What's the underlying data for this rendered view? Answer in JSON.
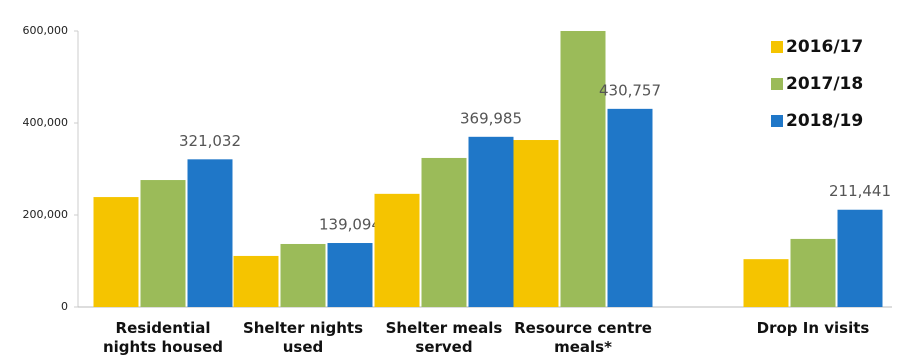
{
  "chart_data": {
    "type": "bar",
    "categories": [
      "Residential nights housed",
      "Shelter nights used",
      "Shelter meals served",
      "Resource centre meals*",
      "Drop In visits"
    ],
    "series": [
      {
        "name": "2016/17",
        "color": "#f5c400",
        "values": [
          239000,
          111000,
          246000,
          363000,
          104000
        ]
      },
      {
        "name": "2017/18",
        "color": "#9bbb59",
        "values": [
          276000,
          137000,
          324000,
          600000,
          148000
        ]
      },
      {
        "name": "2018/19",
        "color": "#1f77c8",
        "values": [
          321032,
          139094,
          369985,
          430757,
          211441
        ],
        "value_labels": [
          "321,032",
          "139,094",
          "369,985",
          "430,757",
          "211,441"
        ]
      }
    ],
    "ylim": [
      0,
      600000
    ],
    "yticks": [
      0,
      {
        "value": 200000,
        "label": "200,000"
      },
      {
        "value": 400000,
        "label": "400,000"
      },
      {
        "value": 600000,
        "label": "600,000"
      }
    ],
    "legend": "right"
  }
}
